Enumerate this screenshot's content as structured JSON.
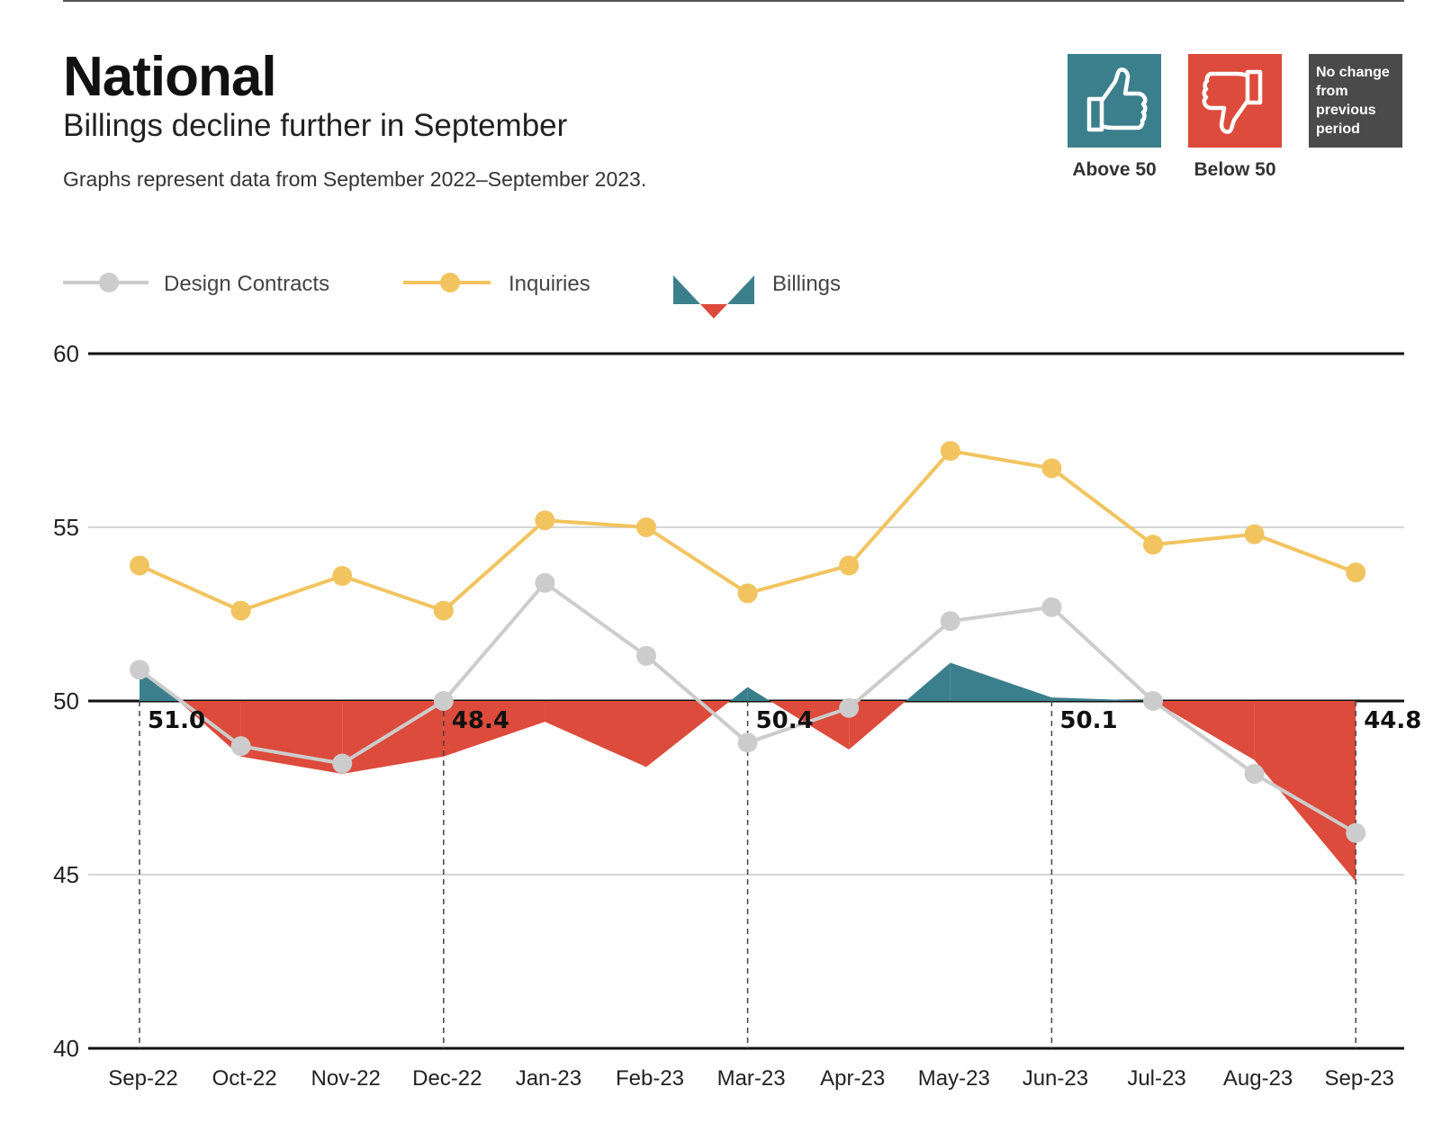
{
  "header": {
    "title": "National",
    "subtitle": "Billings decline further in September",
    "note": "Graphs represent data from September 2022–September 2023."
  },
  "key": {
    "above_label": "Above 50",
    "below_label": "Below 50",
    "no_change_lines": [
      "No change",
      "from",
      "previous",
      "period"
    ],
    "colors": {
      "above": "#3c7f8c",
      "below": "#dc4b3b",
      "no_change": "#4a4a4a"
    },
    "icons": {
      "above": "thumbs-up-icon",
      "below": "thumbs-down-icon"
    }
  },
  "chart_data": {
    "type": "line",
    "x": [
      "Sep-22",
      "Oct-22",
      "Nov-22",
      "Dec-22",
      "Jan-23",
      "Feb-23",
      "Mar-23",
      "Apr-23",
      "May-23",
      "Jun-23",
      "Jul-23",
      "Aug-23",
      "Sep-23"
    ],
    "ylim": [
      40,
      60
    ],
    "yticks": [
      40,
      45,
      50,
      55,
      60
    ],
    "grid": true,
    "legend": "top-left",
    "series": [
      {
        "name": "Design Contracts",
        "kind": "line",
        "color": "#cccccc",
        "values": [
          50.9,
          48.7,
          48.2,
          50.0,
          53.4,
          51.3,
          48.8,
          49.8,
          52.3,
          52.7,
          50.0,
          47.9,
          46.2
        ]
      },
      {
        "name": "Inquiries",
        "kind": "line",
        "color": "#f2c45f",
        "values": [
          53.9,
          52.6,
          53.6,
          52.6,
          55.2,
          55.0,
          53.1,
          53.9,
          57.2,
          56.7,
          54.5,
          54.8,
          53.7
        ]
      },
      {
        "name": "Billings",
        "kind": "area",
        "baseline": 50,
        "color_above": "#3c7f8c",
        "color_below": "#dc4b3b",
        "values": [
          51.0,
          48.4,
          47.9,
          48.4,
          49.4,
          48.1,
          50.4,
          48.6,
          51.1,
          50.1,
          50.0,
          48.3,
          44.8
        ]
      }
    ],
    "annotations": [
      {
        "index": 0,
        "text": "51.0"
      },
      {
        "index": 3,
        "text": "48.4"
      },
      {
        "index": 6,
        "text": "50.4"
      },
      {
        "index": 9,
        "text": "50.1"
      },
      {
        "index": 12,
        "text": "44.8"
      }
    ]
  }
}
